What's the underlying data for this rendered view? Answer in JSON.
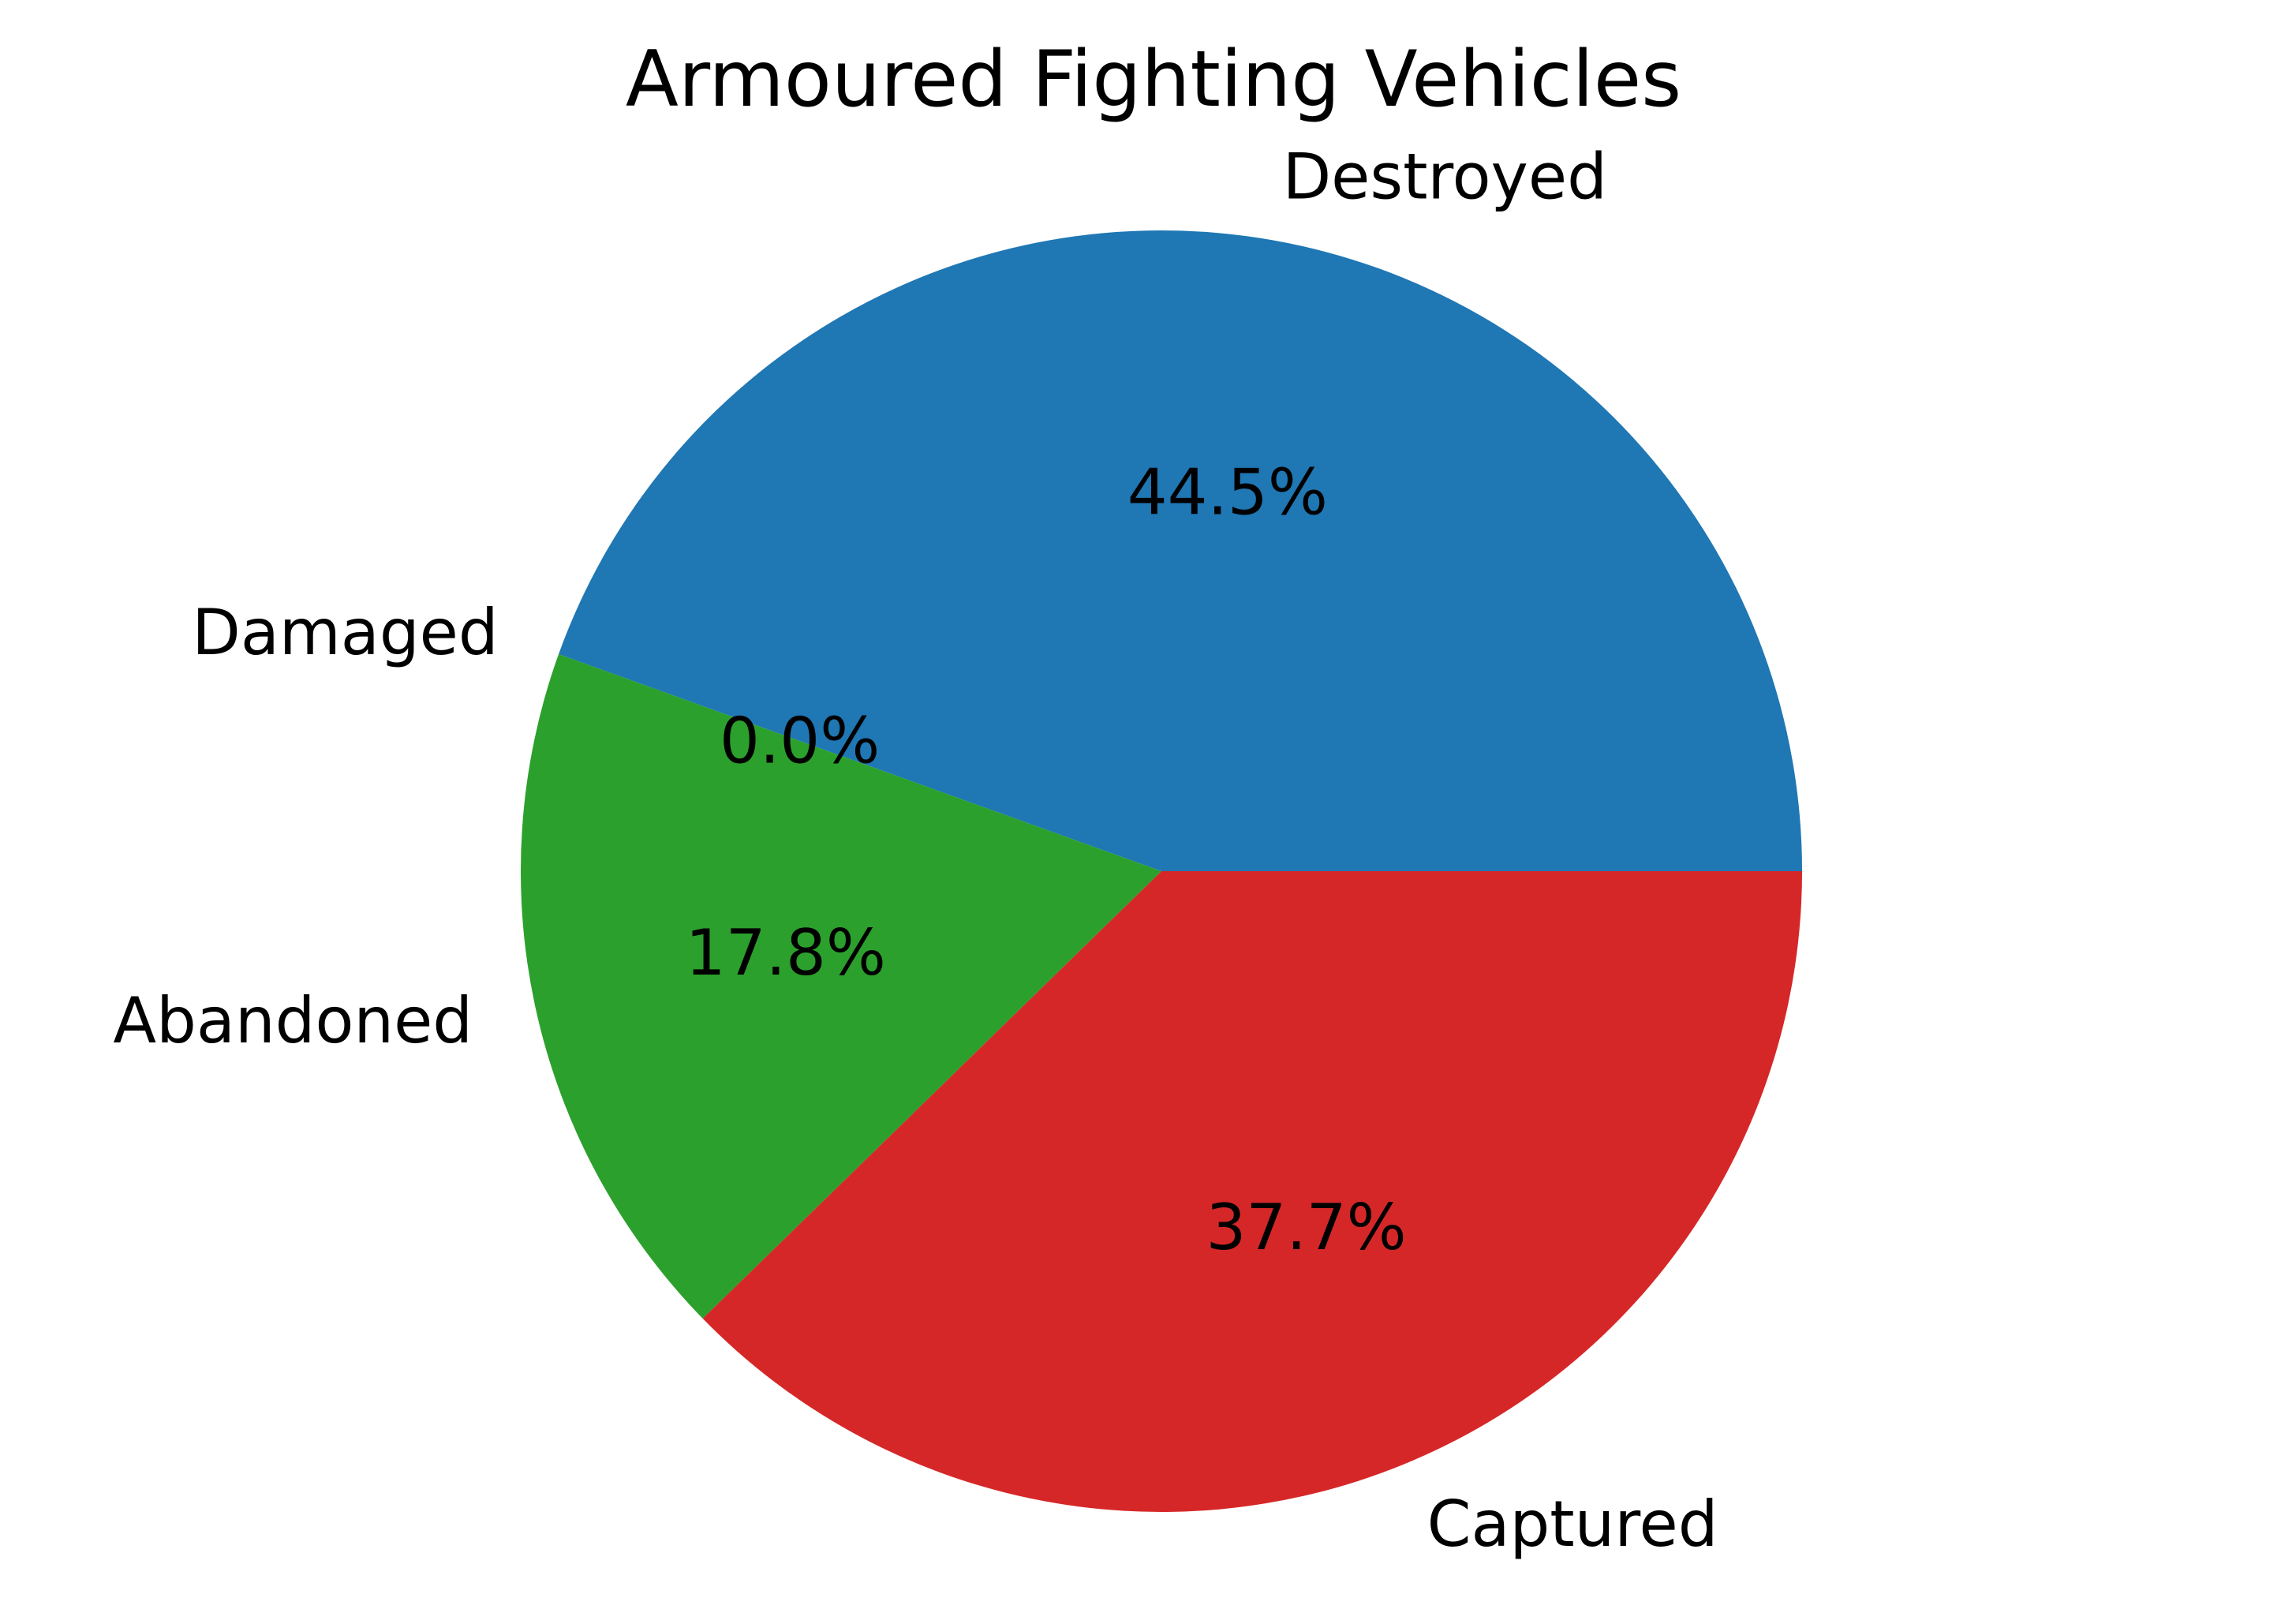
{
  "chart_data": {
    "type": "pie",
    "title": "Armoured Fighting Vehicles",
    "start_angle_deg": 0,
    "direction": "counterclockwise",
    "slices": [
      {
        "label": "Destroyed",
        "value": 44.5,
        "pct_label": "44.5%",
        "color": "#1f77b4"
      },
      {
        "label": "Damaged",
        "value": 0.0,
        "pct_label": "0.0%",
        "color": "#ff7f0e"
      },
      {
        "label": "Abandoned",
        "value": 17.8,
        "pct_label": "17.8%",
        "color": "#2ca02c"
      },
      {
        "label": "Captured",
        "value": 37.7,
        "pct_label": "37.7%",
        "color": "#d62728"
      }
    ]
  }
}
